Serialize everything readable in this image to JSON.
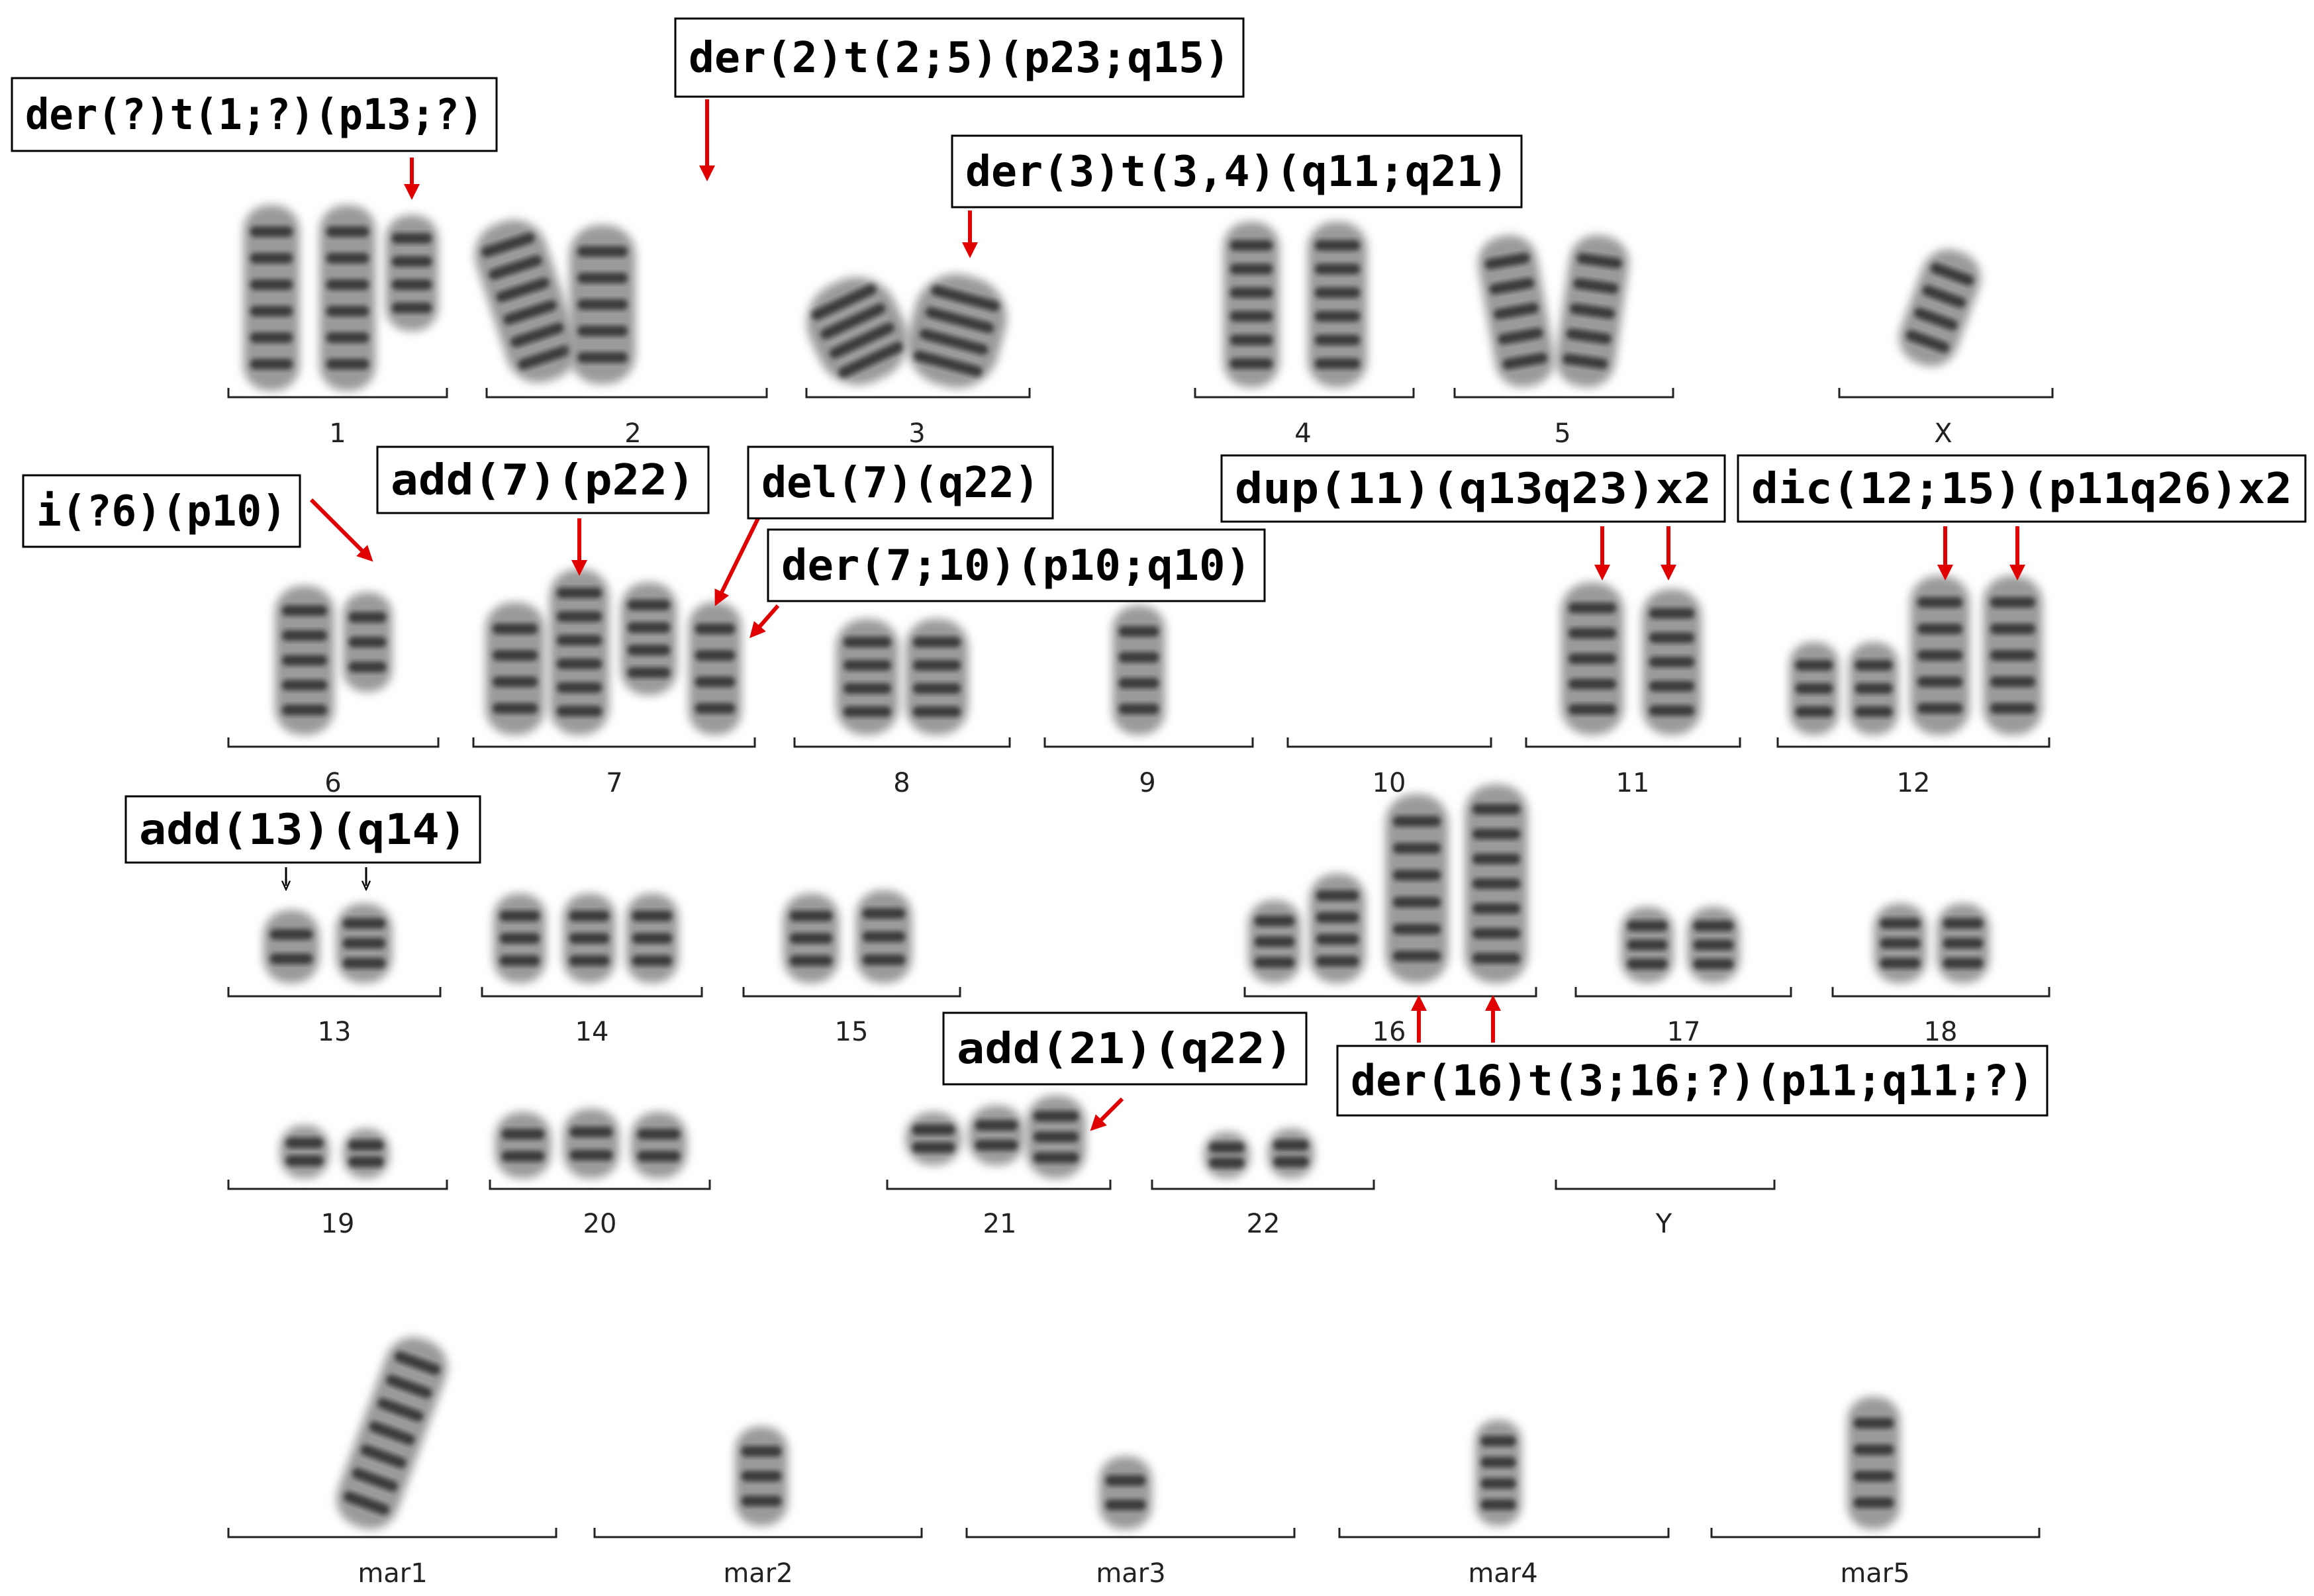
{
  "colors": {
    "arrow": "#e00000",
    "chromosome": "#3a3a3a",
    "text": "#000000"
  },
  "chromosome_labels": [
    "1",
    "2",
    "3",
    "4",
    "5",
    "X",
    "6",
    "7",
    "8",
    "9",
    "10",
    "11",
    "12",
    "13",
    "14",
    "15",
    "16",
    "17",
    "18",
    "19",
    "20",
    "21",
    "22",
    "Y",
    "mar1",
    "mar2",
    "mar3",
    "mar4",
    "mar5"
  ],
  "annotations": [
    "der(?)t(1;?)(p13;?)",
    "der(2)t(2;5)(p23;q15)",
    "der(3)t(3,4)(q11;q21)",
    "i(?6)(p10)",
    "add(7)(p22)",
    "del(7)(q22)",
    "der(7;10)(p10;q10)",
    "dup(11)(q13q23)x2",
    "dic(12;15)(p11q26)x2",
    "add(13)(q14)",
    "add(21)(q22)",
    "der(16)t(3;16;?)(p11;q11;?)"
  ]
}
